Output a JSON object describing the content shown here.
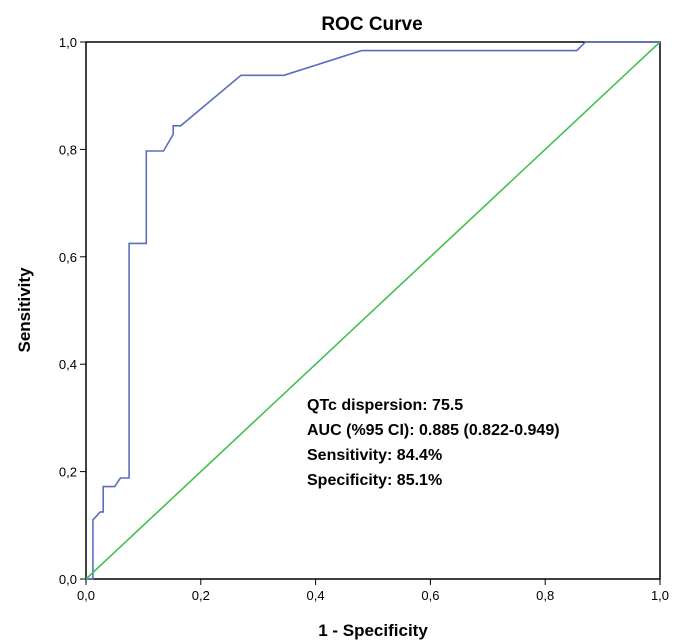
{
  "chart_data": {
    "type": "line",
    "title": "ROC Curve",
    "xlabel": "1 - Specificity",
    "ylabel": "Sensitivity",
    "xlim": [
      0,
      1
    ],
    "ylim": [
      0,
      1
    ],
    "grid": false,
    "x_ticks": [
      {
        "value": 0,
        "label": "0,0"
      },
      {
        "value": 0.2,
        "label": "0,2"
      },
      {
        "value": 0.4,
        "label": "0,4"
      },
      {
        "value": 0.6,
        "label": "0,6"
      },
      {
        "value": 0.8,
        "label": "0,8"
      },
      {
        "value": 1,
        "label": "1,0"
      }
    ],
    "y_ticks": [
      {
        "value": 0,
        "label": "0,0"
      },
      {
        "value": 0.2,
        "label": "0,2"
      },
      {
        "value": 0.4,
        "label": "0,4"
      },
      {
        "value": 0.6,
        "label": "0,6"
      },
      {
        "value": 0.8,
        "label": "0,8"
      },
      {
        "value": 1,
        "label": "1,0"
      }
    ],
    "series": [
      {
        "color": "#5b6fbd",
        "points": [
          [
            0.0,
            0.0
          ],
          [
            0.012,
            0.0
          ],
          [
            0.012,
            0.11
          ],
          [
            0.025,
            0.125
          ],
          [
            0.03,
            0.125
          ],
          [
            0.03,
            0.172
          ],
          [
            0.05,
            0.172
          ],
          [
            0.06,
            0.188
          ],
          [
            0.075,
            0.188
          ],
          [
            0.075,
            0.625
          ],
          [
            0.105,
            0.625
          ],
          [
            0.105,
            0.797
          ],
          [
            0.135,
            0.797
          ],
          [
            0.152,
            0.828
          ],
          [
            0.152,
            0.844
          ],
          [
            0.165,
            0.844
          ],
          [
            0.27,
            0.938
          ],
          [
            0.345,
            0.938
          ],
          [
            0.48,
            0.984
          ],
          [
            0.855,
            0.984
          ],
          [
            0.87,
            1.0
          ],
          [
            1.0,
            1.0
          ]
        ]
      },
      {
        "color": "#45c050",
        "points": [
          [
            0,
            0
          ],
          [
            1,
            1
          ]
        ]
      }
    ],
    "annotations": [
      "QTc dispersion: 75.5",
      "AUC (%95 CI): 0.885 (0.822-0.949)",
      "Sensitivity: 84.4%",
      "Specificity: 85.1%"
    ]
  }
}
